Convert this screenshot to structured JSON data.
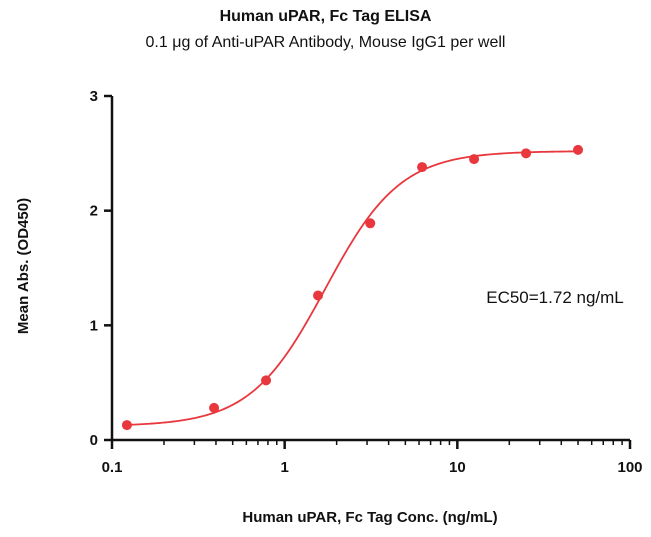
{
  "chart_data": {
    "type": "scatter",
    "title": "Human uPAR, Fc Tag ELISA",
    "subtitle": "0.1 μg of Anti-uPAR Antibody, Mouse IgG1 per well",
    "xlabel": "Human uPAR, Fc Tag Conc. (ng/mL)",
    "ylabel": "Mean Abs. (OD450)",
    "xscale": "log",
    "xlim": [
      0.1,
      100
    ],
    "ylim": [
      0,
      3
    ],
    "xticks": [
      0.1,
      1,
      10,
      100
    ],
    "xtick_labels": [
      "0.1",
      "1",
      "10",
      "100"
    ],
    "yticks": [
      0,
      1,
      2,
      3
    ],
    "ytick_labels": [
      "0",
      "1",
      "2",
      "3"
    ],
    "grid": false,
    "annotation": "EC50=1.72 ng/mL",
    "series": [
      {
        "color": "#e8383d",
        "x": [
          0.122,
          0.39,
          0.78,
          1.56,
          3.13,
          6.25,
          12.5,
          25,
          50
        ],
        "y": [
          0.13,
          0.28,
          0.52,
          1.26,
          1.89,
          2.38,
          2.45,
          2.5,
          2.53
        ]
      }
    ],
    "fit": {
      "model": "4PL",
      "bottom": 0.12,
      "top": 2.52,
      "ec50": 1.72,
      "hill": 2.0
    }
  }
}
